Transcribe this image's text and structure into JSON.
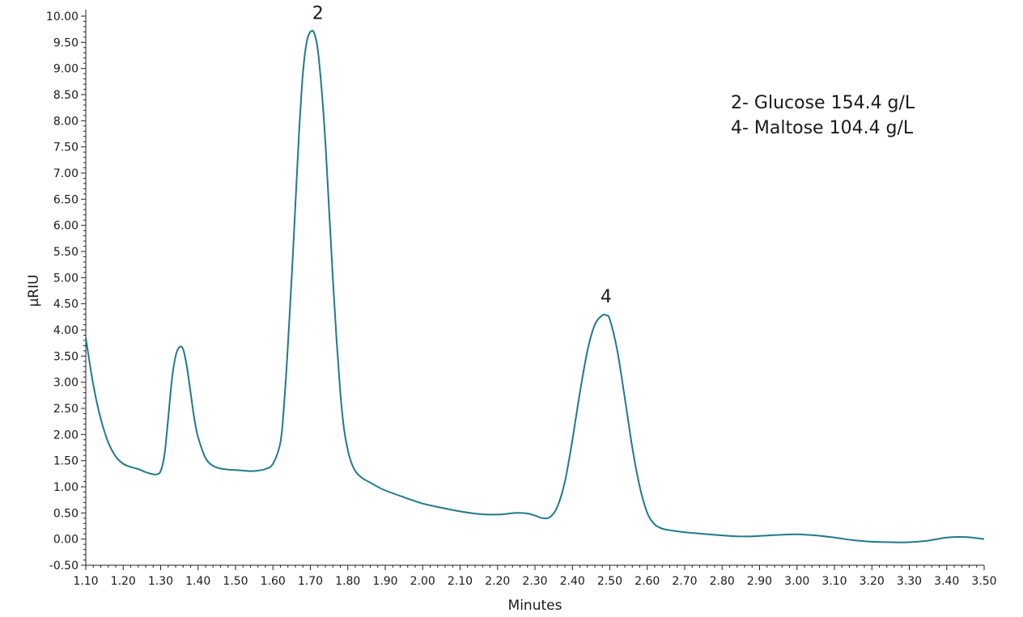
{
  "chart_data": {
    "type": "line",
    "title": "",
    "xlabel": "Minutes",
    "ylabel": "µRIU",
    "xlim": [
      1.1,
      3.5
    ],
    "ylim": [
      -0.5,
      10.0
    ],
    "x_ticks": [
      "1.10",
      "1.20",
      "1.30",
      "1.40",
      "1.50",
      "1.60",
      "1.70",
      "1.80",
      "1.90",
      "2.00",
      "2.10",
      "2.20",
      "2.30",
      "2.40",
      "2.50",
      "2.60",
      "2.70",
      "2.80",
      "2.90",
      "3.00",
      "3.10",
      "3.20",
      "3.30",
      "3.40",
      "3.50"
    ],
    "y_ticks": [
      "-0.50",
      "0.00",
      "0.50",
      "1.00",
      "1.50",
      "2.00",
      "2.50",
      "3.00",
      "3.50",
      "4.00",
      "4.50",
      "5.00",
      "5.50",
      "6.00",
      "6.50",
      "7.00",
      "7.50",
      "8.00",
      "8.50",
      "9.00",
      "9.50",
      "10.00"
    ],
    "grid": false,
    "line_color": "#1f7a8c",
    "series": [
      {
        "x": [
          1.1,
          1.12,
          1.14,
          1.16,
          1.18,
          1.2,
          1.22,
          1.24,
          1.26,
          1.28,
          1.29,
          1.3,
          1.31,
          1.32,
          1.33,
          1.34,
          1.35,
          1.36,
          1.37,
          1.38,
          1.39,
          1.4,
          1.42,
          1.44,
          1.46,
          1.48,
          1.5,
          1.52,
          1.54,
          1.56,
          1.58,
          1.6,
          1.62,
          1.63,
          1.64,
          1.65,
          1.66,
          1.67,
          1.68,
          1.69,
          1.7,
          1.71,
          1.72,
          1.73,
          1.74,
          1.75,
          1.76,
          1.77,
          1.78,
          1.79,
          1.8,
          1.81,
          1.82,
          1.83,
          1.84,
          1.86,
          1.88,
          1.9,
          1.95,
          2.0,
          2.05,
          2.1,
          2.15,
          2.2,
          2.25,
          2.28,
          2.3,
          2.32,
          2.34,
          2.36,
          2.38,
          2.4,
          2.42,
          2.44,
          2.46,
          2.48,
          2.49,
          2.5,
          2.52,
          2.54,
          2.56,
          2.58,
          2.6,
          2.62,
          2.64,
          2.66,
          2.68,
          2.7,
          2.75,
          2.8,
          2.85,
          2.9,
          2.95,
          3.0,
          3.05,
          3.1,
          3.15,
          3.2,
          3.25,
          3.3,
          3.35,
          3.4,
          3.45,
          3.5
        ],
        "y": [
          3.85,
          2.95,
          2.3,
          1.85,
          1.58,
          1.44,
          1.38,
          1.34,
          1.28,
          1.24,
          1.24,
          1.3,
          1.6,
          2.3,
          3.05,
          3.5,
          3.67,
          3.63,
          3.3,
          2.8,
          2.3,
          1.95,
          1.55,
          1.4,
          1.35,
          1.33,
          1.32,
          1.31,
          1.3,
          1.31,
          1.34,
          1.44,
          1.85,
          2.6,
          3.7,
          5.0,
          6.4,
          7.8,
          8.9,
          9.5,
          9.7,
          9.68,
          9.35,
          8.6,
          7.6,
          6.3,
          5.0,
          3.8,
          2.8,
          2.1,
          1.7,
          1.45,
          1.3,
          1.22,
          1.16,
          1.08,
          1.0,
          0.93,
          0.8,
          0.68,
          0.6,
          0.53,
          0.48,
          0.47,
          0.5,
          0.49,
          0.45,
          0.4,
          0.42,
          0.62,
          1.1,
          1.9,
          2.8,
          3.6,
          4.1,
          4.28,
          4.28,
          4.2,
          3.6,
          2.7,
          1.75,
          1.0,
          0.5,
          0.28,
          0.2,
          0.17,
          0.15,
          0.13,
          0.1,
          0.07,
          0.05,
          0.06,
          0.08,
          0.09,
          0.07,
          0.03,
          -0.02,
          -0.05,
          -0.06,
          -0.06,
          -0.03,
          0.03,
          0.04,
          0.0
        ]
      }
    ],
    "peak_labels": [
      {
        "text": "2",
        "x": 1.72,
        "y": 9.7
      },
      {
        "text": "4",
        "x": 2.49,
        "y": 4.28
      }
    ],
    "legend_lines": [
      "2- Glucose 154.4 g/L",
      "4- Maltose 104.4 g/L"
    ],
    "legend_position": "top-right"
  }
}
